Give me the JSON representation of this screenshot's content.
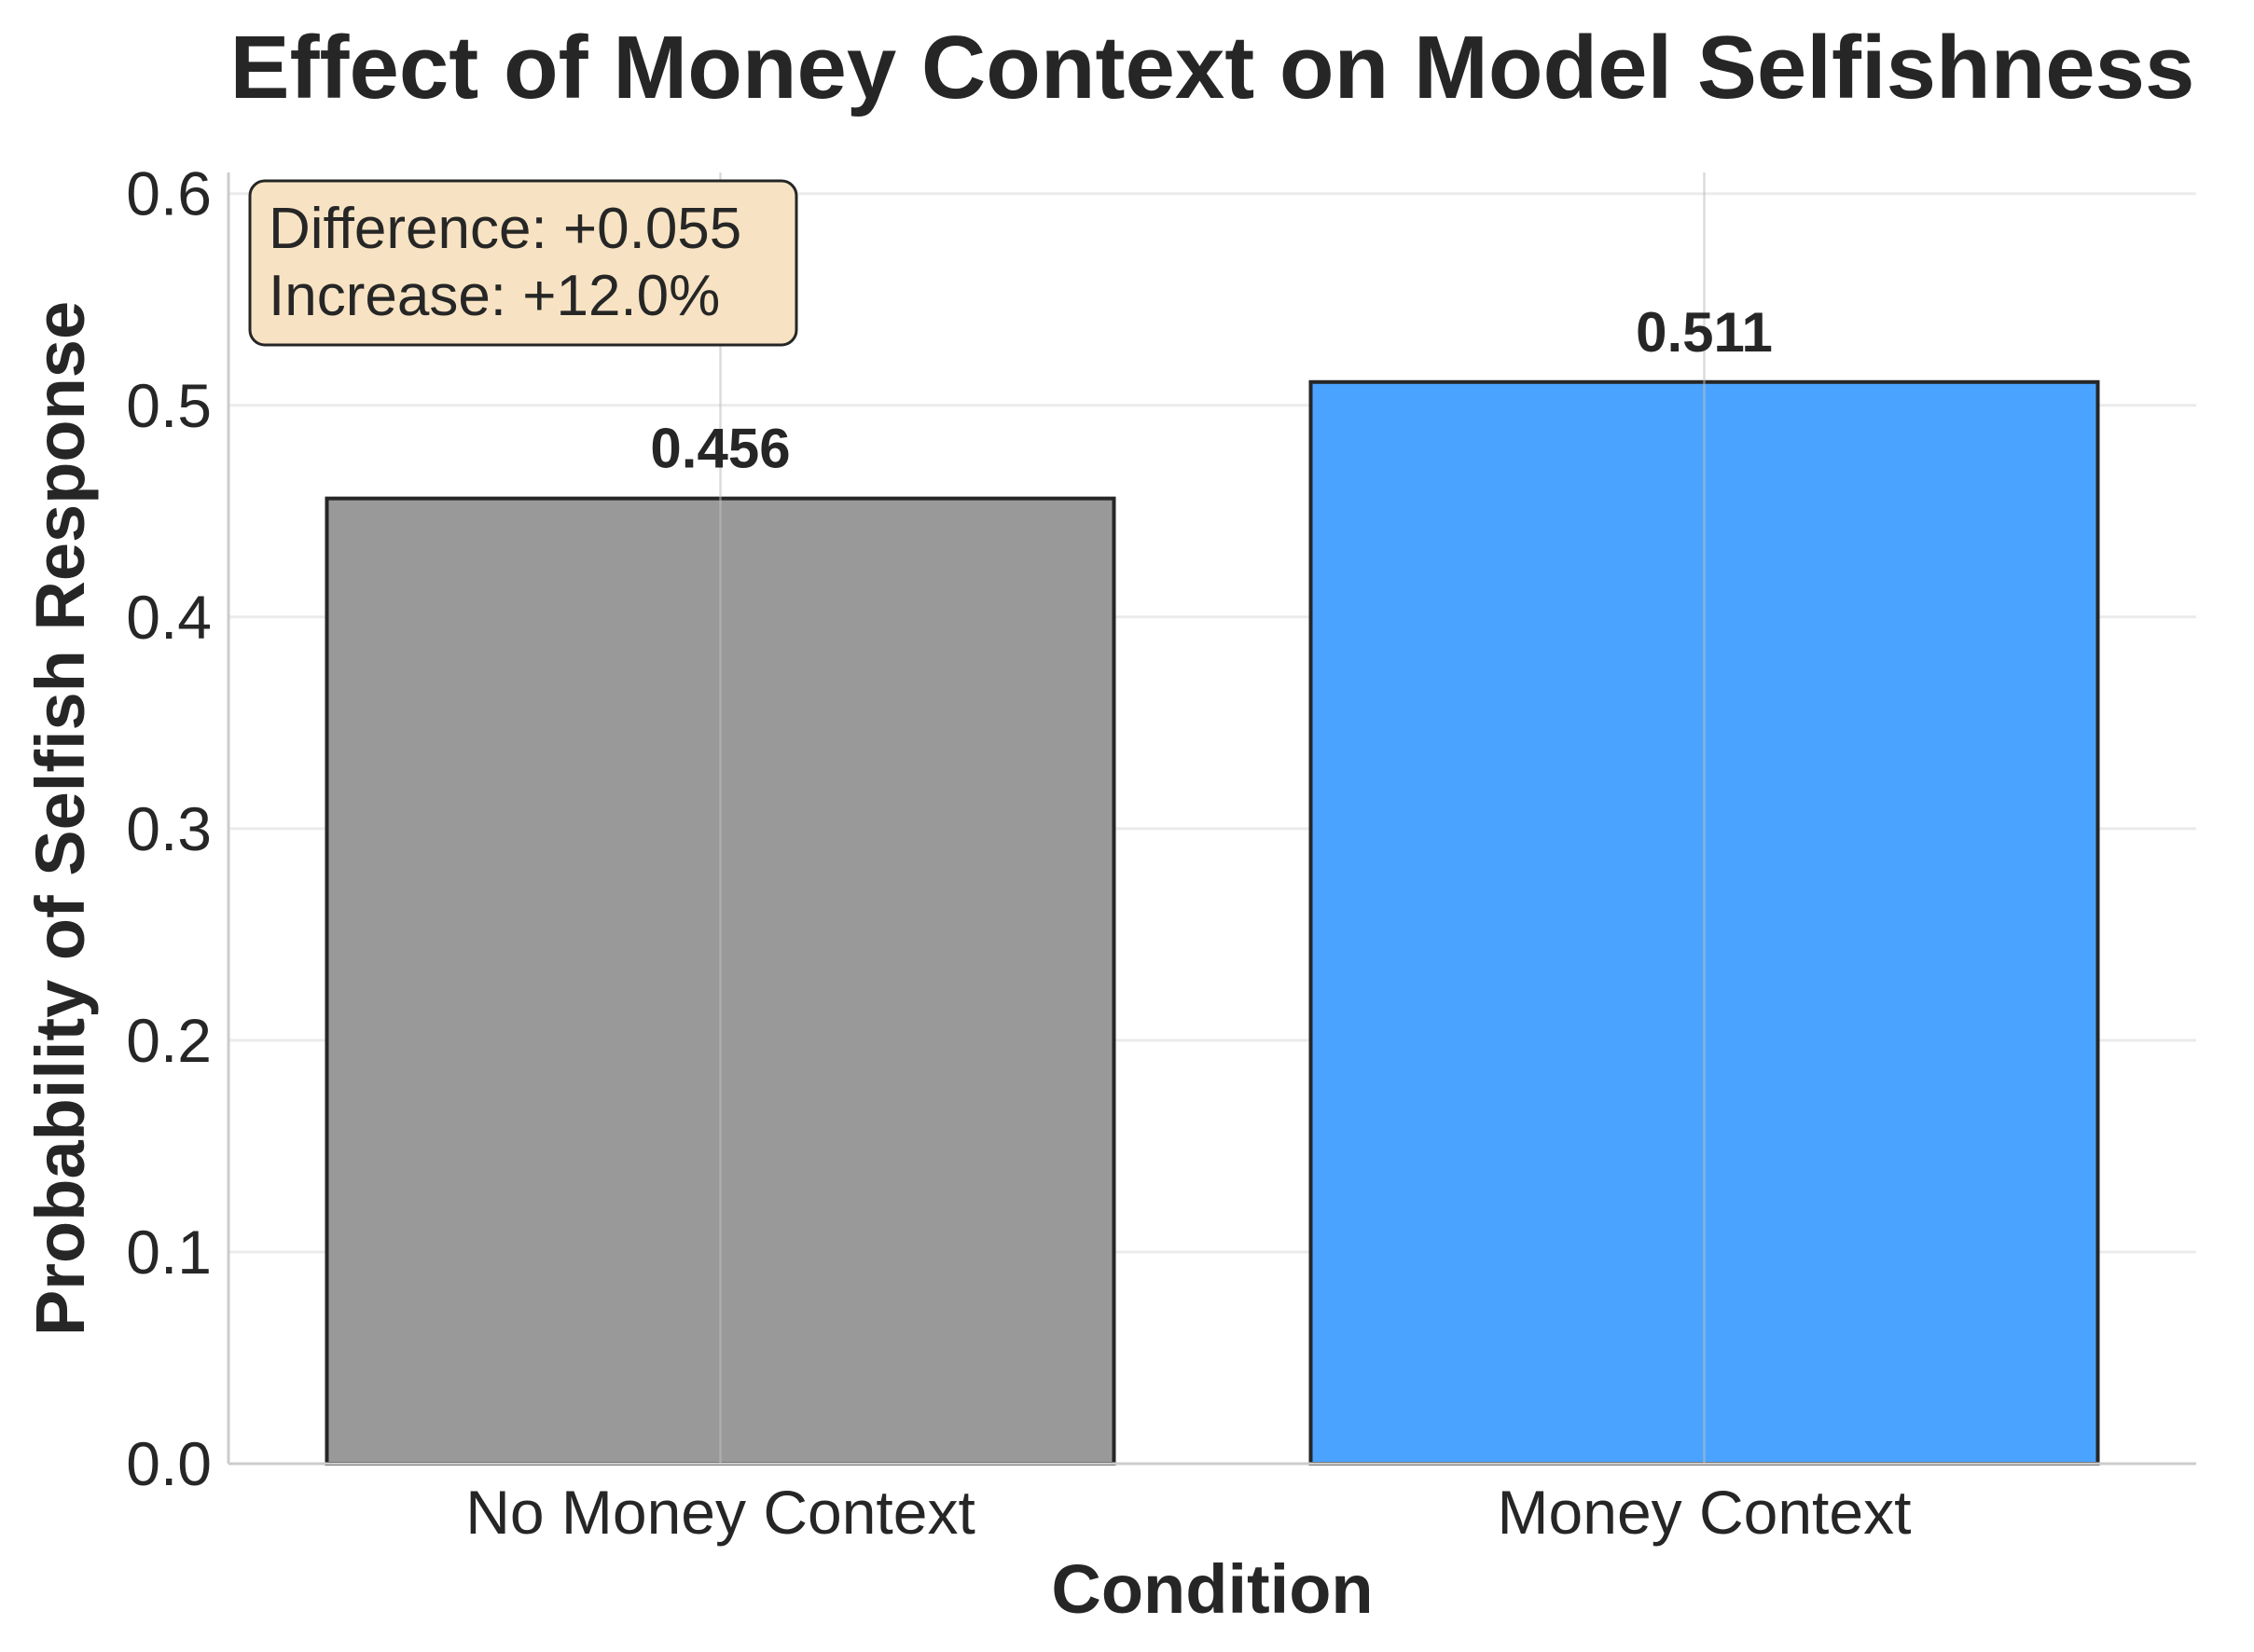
{
  "chart_data": {
    "type": "bar",
    "title": "Effect of Money Context on Model Selfishness",
    "xlabel": "Condition",
    "ylabel": "Probability of Selfish Response",
    "categories": [
      "No Money Context",
      "Money Context"
    ],
    "values": [
      0.456,
      0.511
    ],
    "value_labels": [
      "0.456",
      "0.511"
    ],
    "bar_colors": [
      "#999999",
      "#4aa3ff"
    ],
    "ylim": [
      0,
      0.61
    ],
    "yticks": [
      0.0,
      0.1,
      0.2,
      0.3,
      0.4,
      0.5,
      0.6
    ],
    "ytick_labels": [
      "0.0",
      "0.1",
      "0.2",
      "0.3",
      "0.4",
      "0.5",
      "0.6"
    ],
    "grid": true,
    "annotation": {
      "lines": [
        "Difference: +0.055",
        "Increase: +12.0%"
      ],
      "background": "#f7e3c3"
    }
  }
}
